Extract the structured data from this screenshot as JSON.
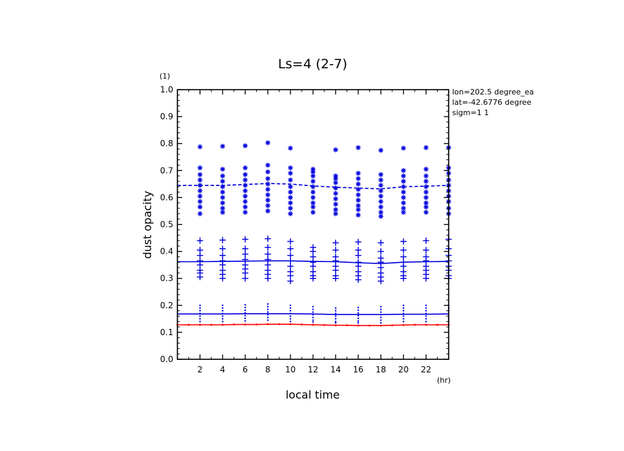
{
  "chart_data": {
    "type": "line",
    "title": "Ls=4 (2-7)",
    "xlabel": "local time",
    "ylabel": "dust opacity",
    "x_unit": "(hr)",
    "y_unit": "(1)",
    "xlim": [
      0,
      24
    ],
    "ylim": [
      0.0,
      1.0
    ],
    "x_ticks": [
      2,
      4,
      6,
      8,
      10,
      12,
      14,
      16,
      18,
      20,
      22
    ],
    "y_ticks": [
      "0.0",
      "0.1",
      "0.2",
      "0.3",
      "0.4",
      "0.5",
      "0.6",
      "0.7",
      "0.8",
      "0.9",
      "1.0"
    ],
    "annotations": [
      "lon=202.5 degree_ea",
      "lat=-42.6776 degree",
      "sigm=1 1"
    ],
    "grid": false,
    "colors": {
      "blue": "#0000dd",
      "red": "#ff0000",
      "axis": "#000000"
    },
    "series": [
      {
        "style": "dashed",
        "color": "#0000dd",
        "x": [
          0,
          2,
          4,
          6,
          8,
          10,
          12,
          14,
          16,
          18,
          20,
          22,
          24
        ],
        "y": [
          0.645,
          0.645,
          0.645,
          0.648,
          0.652,
          0.65,
          0.643,
          0.638,
          0.635,
          0.632,
          0.64,
          0.642,
          0.645
        ]
      },
      {
        "style": "solid",
        "color": "#0000dd",
        "x": [
          0,
          2,
          4,
          6,
          8,
          10,
          12,
          14,
          16,
          18,
          20,
          22,
          24
        ],
        "y": [
          0.362,
          0.362,
          0.363,
          0.364,
          0.365,
          0.365,
          0.363,
          0.362,
          0.358,
          0.355,
          0.36,
          0.362,
          0.363
        ]
      },
      {
        "style": "solid",
        "color": "#0000dd",
        "x": [
          0,
          2,
          4,
          6,
          8,
          10,
          12,
          14,
          16,
          18,
          20,
          22,
          24
        ],
        "y": [
          0.168,
          0.168,
          0.168,
          0.169,
          0.169,
          0.169,
          0.168,
          0.166,
          0.166,
          0.166,
          0.167,
          0.167,
          0.168
        ]
      },
      {
        "style": "solid",
        "color": "#ff0000",
        "x": [
          0,
          1,
          2,
          3,
          4,
          5,
          6,
          7,
          8,
          9,
          10,
          11,
          12,
          13,
          14,
          15,
          16,
          17,
          18,
          19,
          20,
          21,
          22,
          23,
          24
        ],
        "y": [
          0.128,
          0.128,
          0.128,
          0.128,
          0.128,
          0.129,
          0.129,
          0.129,
          0.13,
          0.13,
          0.13,
          0.129,
          0.128,
          0.127,
          0.126,
          0.126,
          0.125,
          0.125,
          0.125,
          0.126,
          0.127,
          0.128,
          0.128,
          0.128,
          0.128
        ]
      }
    ],
    "scatter": {
      "color": "#0000dd",
      "x": [
        2,
        4,
        6,
        8,
        10,
        12,
        14,
        16,
        18,
        20,
        22,
        24
      ],
      "stars": [
        [
          0.788,
          0.71,
          0.685,
          0.665,
          0.645,
          0.625,
          0.605,
          0.585,
          0.565,
          0.54
        ],
        [
          0.79,
          0.705,
          0.68,
          0.66,
          0.64,
          0.62,
          0.6,
          0.58,
          0.56,
          0.545
        ],
        [
          0.792,
          0.71,
          0.685,
          0.665,
          0.645,
          0.625,
          0.605,
          0.585,
          0.565,
          0.545
        ],
        [
          0.803,
          0.72,
          0.695,
          0.67,
          0.65,
          0.63,
          0.61,
          0.59,
          0.57,
          0.55
        ],
        [
          0.783,
          0.71,
          0.69,
          0.665,
          0.64,
          0.62,
          0.6,
          0.58,
          0.56,
          0.54
        ],
        [
          0.705,
          0.695,
          0.68,
          0.66,
          0.64,
          0.62,
          0.6,
          0.58,
          0.565,
          0.545
        ],
        [
          0.777,
          0.68,
          0.67,
          0.655,
          0.635,
          0.615,
          0.595,
          0.575,
          0.555,
          0.54
        ],
        [
          0.785,
          0.69,
          0.67,
          0.65,
          0.63,
          0.61,
          0.59,
          0.57,
          0.555,
          0.535
        ],
        [
          0.775,
          0.685,
          0.665,
          0.645,
          0.625,
          0.605,
          0.585,
          0.565,
          0.545,
          0.53
        ],
        [
          0.783,
          0.7,
          0.68,
          0.66,
          0.64,
          0.62,
          0.6,
          0.58,
          0.56,
          0.545
        ],
        [
          0.785,
          0.705,
          0.68,
          0.66,
          0.64,
          0.62,
          0.6,
          0.58,
          0.565,
          0.545
        ],
        [
          0.785,
          0.71,
          0.69,
          0.665,
          0.645,
          0.625,
          0.605,
          0.585,
          0.56,
          0.54
        ]
      ],
      "pluses": [
        [
          0.44,
          0.405,
          0.385,
          0.365,
          0.35,
          0.33,
          0.32,
          0.305
        ],
        [
          0.442,
          0.41,
          0.385,
          0.365,
          0.35,
          0.33,
          0.315,
          0.3
        ],
        [
          0.445,
          0.41,
          0.39,
          0.37,
          0.35,
          0.335,
          0.32,
          0.3
        ],
        [
          0.447,
          0.415,
          0.39,
          0.37,
          0.35,
          0.33,
          0.315,
          0.3
        ],
        [
          0.437,
          0.41,
          0.385,
          0.365,
          0.345,
          0.325,
          0.31,
          0.29
        ],
        [
          0.415,
          0.4,
          0.38,
          0.36,
          0.345,
          0.325,
          0.31,
          0.3
        ],
        [
          0.432,
          0.405,
          0.38,
          0.365,
          0.345,
          0.33,
          0.31,
          0.3
        ],
        [
          0.435,
          0.405,
          0.385,
          0.36,
          0.345,
          0.325,
          0.31,
          0.295
        ],
        [
          0.432,
          0.4,
          0.375,
          0.36,
          0.34,
          0.32,
          0.305,
          0.29
        ],
        [
          0.437,
          0.405,
          0.38,
          0.36,
          0.345,
          0.325,
          0.31,
          0.3
        ],
        [
          0.44,
          0.405,
          0.38,
          0.365,
          0.345,
          0.33,
          0.315,
          0.3
        ],
        [
          0.445,
          0.41,
          0.385,
          0.365,
          0.345,
          0.33,
          0.31,
          0.3
        ]
      ],
      "dots": [
        [
          0.2,
          0.19,
          0.18,
          0.17,
          0.16,
          0.15,
          0.14
        ],
        [
          0.2,
          0.19,
          0.18,
          0.17,
          0.16,
          0.15,
          0.14
        ],
        [
          0.202,
          0.192,
          0.182,
          0.172,
          0.162,
          0.152,
          0.142
        ],
        [
          0.205,
          0.195,
          0.185,
          0.175,
          0.165,
          0.155,
          0.145
        ],
        [
          0.2,
          0.19,
          0.18,
          0.17,
          0.16,
          0.15,
          0.14
        ],
        [
          0.195,
          0.185,
          0.175,
          0.165,
          0.155,
          0.145,
          0.138
        ],
        [
          0.19,
          0.18,
          0.17,
          0.16,
          0.15,
          0.14,
          0.135
        ],
        [
          0.192,
          0.182,
          0.172,
          0.162,
          0.152,
          0.142,
          0.135
        ],
        [
          0.195,
          0.185,
          0.175,
          0.165,
          0.155,
          0.145,
          0.135
        ],
        [
          0.2,
          0.19,
          0.18,
          0.17,
          0.16,
          0.15,
          0.14
        ],
        [
          0.2,
          0.19,
          0.18,
          0.17,
          0.16,
          0.15,
          0.14
        ],
        [
          0.2,
          0.19,
          0.18,
          0.17,
          0.16,
          0.15,
          0.14
        ]
      ]
    }
  }
}
